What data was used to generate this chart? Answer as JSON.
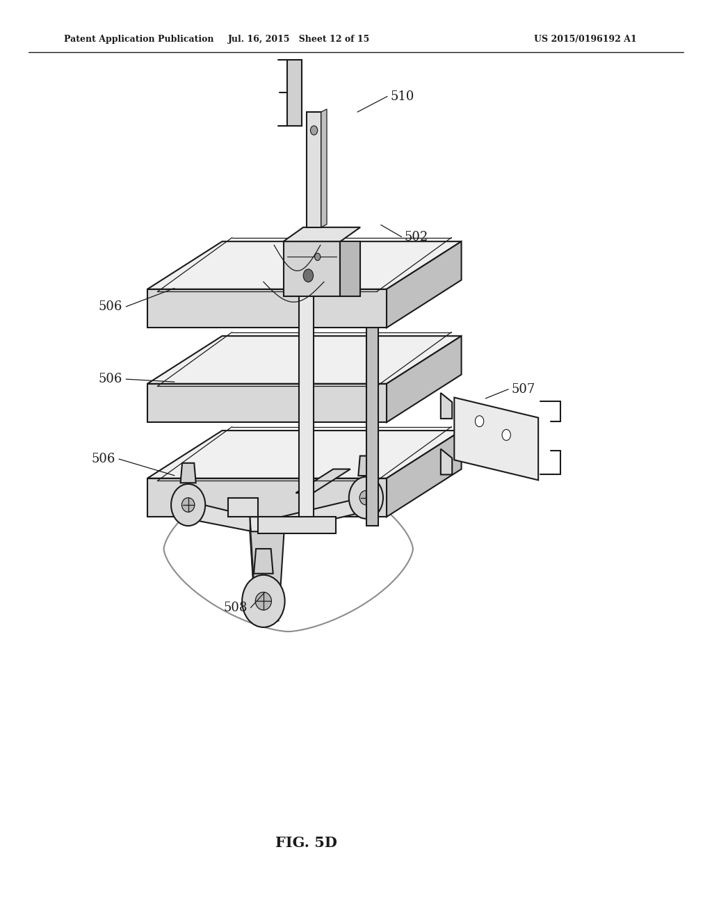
{
  "background_color": "#ffffff",
  "title_text": "FIG. 5D",
  "header_left": "Patent Application Publication",
  "header_center": "Jul. 16, 2015   Sheet 12 of 15",
  "header_right": "US 2015/0196192 A1",
  "line_color": "#1a1a1a",
  "label_fontsize": 13,
  "fc_shelf": "#f0f0f0",
  "fc_shelf_side": "#d8d8d8",
  "fc_shelf_right": "#c0c0c0",
  "fc_pole": "#e8e8e8",
  "fc_dark": "#c0c0c0",
  "fc_mount": "#d0d0d0"
}
